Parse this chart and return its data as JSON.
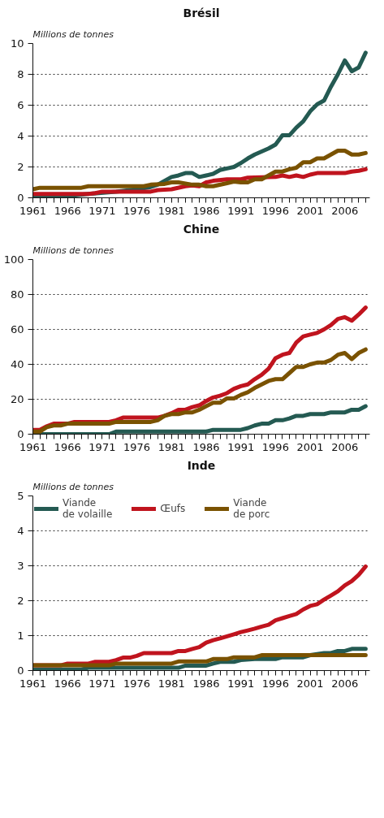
{
  "chart_data": [
    {
      "type": "line",
      "title": "Brésil",
      "ylabel": "Millions de tonnes",
      "xlim": [
        1961,
        2009.6
      ],
      "ylim": [
        0,
        10
      ],
      "yticks": [
        0,
        2,
        4,
        6,
        8,
        10
      ],
      "grid": "y",
      "line_style": "solid",
      "xticks": [
        1961,
        {
          "value": 1962,
          "label": null
        },
        {
          "value": 1963,
          "label": null
        },
        {
          "value": 1964,
          "label": null
        },
        {
          "value": 1965,
          "label": null
        },
        1966,
        {
          "value": 1967,
          "label": null
        },
        {
          "value": 1968,
          "label": null
        },
        {
          "value": 1969,
          "label": null
        },
        {
          "value": 1970,
          "label": null
        },
        1971,
        {
          "value": 1972,
          "label": null
        },
        {
          "value": 1973,
          "label": null
        },
        {
          "value": 1974,
          "label": null
        },
        {
          "value": 1975,
          "label": null
        },
        1976,
        {
          "value": 1977,
          "label": null
        },
        {
          "value": 1978,
          "label": null
        },
        {
          "value": 1979,
          "label": null
        },
        {
          "value": 1980,
          "label": null
        },
        1981,
        {
          "value": 1982,
          "label": null
        },
        {
          "value": 1983,
          "label": null
        },
        {
          "value": 1984,
          "label": null
        },
        {
          "value": 1985,
          "label": null
        },
        1986,
        {
          "value": 1987,
          "label": null
        },
        {
          "value": 1988,
          "label": null
        },
        {
          "value": 1989,
          "label": null
        },
        {
          "value": 1990,
          "label": null
        },
        1991,
        {
          "value": 1992,
          "label": null
        },
        {
          "value": 1993,
          "label": null
        },
        {
          "value": 1994,
          "label": null
        },
        {
          "value": 1995,
          "label": null
        },
        1996,
        {
          "value": 1997,
          "label": null
        },
        {
          "value": 1998,
          "label": null
        },
        {
          "value": 1999,
          "label": null
        },
        {
          "value": 2000,
          "label": null
        },
        2001,
        {
          "value": 2002,
          "label": null
        },
        {
          "value": 2003,
          "label": null
        },
        {
          "value": 2004,
          "label": null
        },
        {
          "value": 2005,
          "label": null
        },
        2006,
        {
          "value": 2007,
          "label": null
        },
        {
          "value": 2008,
          "label": null
        },
        {
          "value": 2009,
          "label": null
        }
      ],
      "series": [
        {
          "color": "#245a52",
          "x": [
            1961,
            1966,
            1969,
            1973,
            1976,
            1978,
            1979,
            1980,
            1981,
            1982,
            1983,
            1984,
            1985,
            1986,
            1987,
            1988,
            1989,
            1990,
            1991,
            1992,
            1993,
            1994,
            1995,
            1996,
            1997,
            1998,
            1999,
            2000,
            2001,
            2002,
            2003,
            2004,
            2005,
            2006,
            2007,
            2008,
            2009
          ],
          "values": [
            0.15,
            0.1,
            0.25,
            0.4,
            0.55,
            0.7,
            0.85,
            1.1,
            1.35,
            1.45,
            1.6,
            1.6,
            1.35,
            1.45,
            1.55,
            1.8,
            1.9,
            2.0,
            2.25,
            2.55,
            2.8,
            3.0,
            3.2,
            3.45,
            4.05,
            4.05,
            4.55,
            4.95,
            5.6,
            6.05,
            6.3,
            7.2,
            8.0,
            8.9,
            8.2,
            8.45,
            9.4
          ]
        },
        {
          "color": "#c0141e",
          "x": [
            1961,
            1969,
            1970,
            1971,
            1978,
            1979,
            1981,
            1983,
            1984,
            1985,
            1986,
            1987,
            1989,
            1991,
            1992,
            1996,
            1997,
            1998,
            1999,
            2000,
            2001,
            2002,
            2006,
            2007,
            2008,
            2009
          ],
          "values": [
            0.25,
            0.25,
            0.3,
            0.4,
            0.4,
            0.5,
            0.55,
            0.75,
            0.8,
            0.75,
            1.0,
            1.1,
            1.2,
            1.2,
            1.3,
            1.35,
            1.45,
            1.35,
            1.45,
            1.35,
            1.5,
            1.6,
            1.6,
            1.7,
            1.75,
            1.85
          ]
        },
        {
          "color": "#7a5200",
          "x": [
            1961,
            1962,
            1968,
            1969,
            1977,
            1978,
            1980,
            1981,
            1982,
            1984,
            1985,
            1986,
            1987,
            1989,
            1990,
            1991,
            1992,
            1993,
            1994,
            1995,
            1996,
            1997,
            1998,
            1999,
            2000,
            2001,
            2002,
            2003,
            2004,
            2005,
            2006,
            2007,
            2008,
            2009
          ],
          "values": [
            0.55,
            0.65,
            0.65,
            0.75,
            0.75,
            0.85,
            0.9,
            1.0,
            1.0,
            0.85,
            0.85,
            0.75,
            0.75,
            0.95,
            1.05,
            1.0,
            1.0,
            1.2,
            1.2,
            1.45,
            1.7,
            1.7,
            1.85,
            1.95,
            2.3,
            2.3,
            2.55,
            2.55,
            2.8,
            3.05,
            3.05,
            2.8,
            2.8,
            2.9
          ]
        }
      ]
    },
    {
      "type": "line",
      "title": "Chine",
      "ylabel": "Millions de tonnes",
      "xlim": [
        1961,
        2009.6
      ],
      "ylim": [
        0,
        100
      ],
      "yticks": [
        0,
        20,
        40,
        60,
        80,
        100
      ],
      "grid": "y",
      "line_style": "solid",
      "xticks": [
        1961,
        {
          "value": 1962,
          "label": null
        },
        {
          "value": 1963,
          "label": null
        },
        {
          "value": 1964,
          "label": null
        },
        {
          "value": 1965,
          "label": null
        },
        1966,
        {
          "value": 1967,
          "label": null
        },
        {
          "value": 1968,
          "label": null
        },
        {
          "value": 1969,
          "label": null
        },
        {
          "value": 1970,
          "label": null
        },
        1971,
        {
          "value": 1972,
          "label": null
        },
        {
          "value": 1973,
          "label": null
        },
        {
          "value": 1974,
          "label": null
        },
        {
          "value": 1975,
          "label": null
        },
        1976,
        {
          "value": 1977,
          "label": null
        },
        {
          "value": 1978,
          "label": null
        },
        {
          "value": 1979,
          "label": null
        },
        {
          "value": 1980,
          "label": null
        },
        1981,
        {
          "value": 1982,
          "label": null
        },
        {
          "value": 1983,
          "label": null
        },
        {
          "value": 1984,
          "label": null
        },
        {
          "value": 1985,
          "label": null
        },
        1986,
        {
          "value": 1987,
          "label": null
        },
        {
          "value": 1988,
          "label": null
        },
        {
          "value": 1989,
          "label": null
        },
        {
          "value": 1990,
          "label": null
        },
        1991,
        {
          "value": 1992,
          "label": null
        },
        {
          "value": 1993,
          "label": null
        },
        {
          "value": 1994,
          "label": null
        },
        {
          "value": 1995,
          "label": null
        },
        1996,
        {
          "value": 1997,
          "label": null
        },
        {
          "value": 1998,
          "label": null
        },
        {
          "value": 1999,
          "label": null
        },
        {
          "value": 2000,
          "label": null
        },
        2001,
        {
          "value": 2002,
          "label": null
        },
        {
          "value": 2003,
          "label": null
        },
        {
          "value": 2004,
          "label": null
        },
        {
          "value": 2005,
          "label": null
        },
        2006,
        {
          "value": 2007,
          "label": null
        },
        {
          "value": 2008,
          "label": null
        },
        {
          "value": 2009,
          "label": null
        }
      ],
      "series": [
        {
          "color": "#245a52",
          "x": [
            1961,
            1972,
            1973,
            1986,
            1987,
            1991,
            1992,
            1993,
            1994,
            1995,
            1996,
            1997,
            1998,
            1999,
            2000,
            2001,
            2003,
            2004,
            2006,
            2007,
            2008,
            2009
          ],
          "values": [
            0,
            0,
            1.5,
            1.5,
            2.5,
            2.5,
            3.5,
            5,
            6,
            6,
            8,
            8,
            9,
            10.5,
            10.5,
            11.5,
            11.5,
            12.5,
            12.5,
            14,
            14,
            16
          ]
        },
        {
          "color": "#c0141e",
          "x": [
            1961,
            1962,
            1963,
            1964,
            1966,
            1967,
            1972,
            1973,
            1974,
            1979,
            1980,
            1981,
            1982,
            1983,
            1984,
            1985,
            1986,
            1987,
            1988,
            1989,
            1990,
            1991,
            1992,
            1993,
            1994,
            1995,
            1996,
            1997,
            1998,
            1999,
            2000,
            2001,
            2002,
            2003,
            2004,
            2005,
            2006,
            2007,
            2008,
            2009
          ],
          "values": [
            2.5,
            2.5,
            4.5,
            6,
            6,
            7,
            7,
            8,
            9.5,
            9.5,
            10.5,
            12,
            14,
            14,
            15.5,
            16.5,
            19,
            21,
            22,
            23.5,
            26,
            27.5,
            28.5,
            31.5,
            34,
            37.5,
            43.5,
            45.5,
            46.5,
            52.5,
            56,
            57,
            58,
            60,
            62.5,
            66,
            67,
            65,
            68.5,
            72.5
          ]
        },
        {
          "color": "#7a5200",
          "x": [
            1961,
            1962,
            1963,
            1964,
            1965,
            1966,
            1972,
            1973,
            1978,
            1979,
            1980,
            1981,
            1982,
            1983,
            1984,
            1985,
            1986,
            1987,
            1988,
            1989,
            1990,
            1991,
            1992,
            1993,
            1994,
            1995,
            1996,
            1997,
            1998,
            1999,
            2000,
            2001,
            2002,
            2003,
            2004,
            2005,
            2006,
            2007,
            2008,
            2009
          ],
          "values": [
            1.5,
            1.5,
            4,
            5,
            5,
            6,
            6,
            7,
            7,
            8,
            10.5,
            11.5,
            11.5,
            12.5,
            12.5,
            14,
            16,
            18,
            18,
            20.5,
            20.5,
            22.5,
            24,
            26.5,
            28.5,
            30.5,
            31.5,
            31.5,
            35,
            38.5,
            38.5,
            40,
            41,
            41,
            42.5,
            45.5,
            46.5,
            43,
            46.5,
            48.5
          ]
        }
      ]
    },
    {
      "type": "line",
      "title": "Inde",
      "ylabel": "Millions de tonnes",
      "xlim": [
        1961,
        2009.6
      ],
      "ylim": [
        0,
        5
      ],
      "yticks": [
        0,
        1,
        2,
        3,
        4,
        5
      ],
      "grid": "y",
      "line_style": "solid",
      "legend": "top left",
      "xticks": [
        1961,
        {
          "value": 1962,
          "label": null
        },
        {
          "value": 1963,
          "label": null
        },
        {
          "value": 1964,
          "label": null
        },
        {
          "value": 1965,
          "label": null
        },
        1966,
        {
          "value": 1967,
          "label": null
        },
        {
          "value": 1968,
          "label": null
        },
        {
          "value": 1969,
          "label": null
        },
        {
          "value": 1970,
          "label": null
        },
        1971,
        {
          "value": 1972,
          "label": null
        },
        {
          "value": 1973,
          "label": null
        },
        {
          "value": 1974,
          "label": null
        },
        {
          "value": 1975,
          "label": null
        },
        1976,
        {
          "value": 1977,
          "label": null
        },
        {
          "value": 1978,
          "label": null
        },
        {
          "value": 1979,
          "label": null
        },
        {
          "value": 1980,
          "label": null
        },
        1981,
        {
          "value": 1982,
          "label": null
        },
        {
          "value": 1983,
          "label": null
        },
        {
          "value": 1984,
          "label": null
        },
        {
          "value": 1985,
          "label": null
        },
        1986,
        {
          "value": 1987,
          "label": null
        },
        {
          "value": 1988,
          "label": null
        },
        {
          "value": 1989,
          "label": null
        },
        {
          "value": 1990,
          "label": null
        },
        1991,
        {
          "value": 1992,
          "label": null
        },
        {
          "value": 1993,
          "label": null
        },
        {
          "value": 1994,
          "label": null
        },
        {
          "value": 1995,
          "label": null
        },
        1996,
        {
          "value": 1997,
          "label": null
        },
        {
          "value": 1998,
          "label": null
        },
        {
          "value": 1999,
          "label": null
        },
        {
          "value": 2000,
          "label": null
        },
        2001,
        {
          "value": 2002,
          "label": null
        },
        {
          "value": 2003,
          "label": null
        },
        {
          "value": 2004,
          "label": null
        },
        {
          "value": 2005,
          "label": null
        },
        2006,
        {
          "value": 2007,
          "label": null
        },
        {
          "value": 2008,
          "label": null
        },
        {
          "value": 2009,
          "label": null
        }
      ],
      "series": [
        {
          "name": "Viande\nde volaille",
          "color": "#245a52",
          "x": [
            1961,
            1968,
            1969,
            1982,
            1983,
            1986,
            1987,
            1988,
            1990,
            1991,
            1993,
            1996,
            1997,
            2000,
            2001,
            2003,
            2004,
            2005,
            2006,
            2007,
            2009
          ],
          "values": [
            0.03,
            0.03,
            0.08,
            0.08,
            0.14,
            0.14,
            0.2,
            0.25,
            0.25,
            0.3,
            0.33,
            0.33,
            0.38,
            0.38,
            0.44,
            0.5,
            0.5,
            0.56,
            0.56,
            0.62,
            0.62
          ]
        },
        {
          "name": "Œufs",
          "color": "#c0141e",
          "x": [
            1961,
            1965,
            1966,
            1969,
            1970,
            1972,
            1973,
            1974,
            1975,
            1976,
            1977,
            1981,
            1982,
            1983,
            1984,
            1985,
            1986,
            1987,
            1988,
            1989,
            1990,
            1991,
            1992,
            1993,
            1994,
            1995,
            1996,
            1997,
            1998,
            1999,
            2000,
            2001,
            2002,
            2003,
            2004,
            2005,
            2006,
            2007,
            2008,
            2009
          ],
          "values": [
            0.15,
            0.15,
            0.2,
            0.2,
            0.25,
            0.25,
            0.3,
            0.37,
            0.37,
            0.42,
            0.5,
            0.5,
            0.56,
            0.56,
            0.62,
            0.67,
            0.8,
            0.87,
            0.92,
            0.98,
            1.04,
            1.1,
            1.15,
            1.2,
            1.26,
            1.31,
            1.44,
            1.5,
            1.56,
            1.62,
            1.75,
            1.85,
            1.9,
            2.03,
            2.15,
            2.27,
            2.44,
            2.56,
            2.74,
            2.98
          ]
        },
        {
          "name": "Viande\nde porc",
          "color": "#7a5200",
          "x": [
            1961,
            1972,
            1973,
            1981,
            1982,
            1986,
            1987,
            1989,
            1990,
            1993,
            1994,
            2009
          ],
          "values": [
            0.15,
            0.15,
            0.2,
            0.2,
            0.26,
            0.26,
            0.33,
            0.33,
            0.38,
            0.38,
            0.44,
            0.44
          ]
        }
      ]
    }
  ]
}
